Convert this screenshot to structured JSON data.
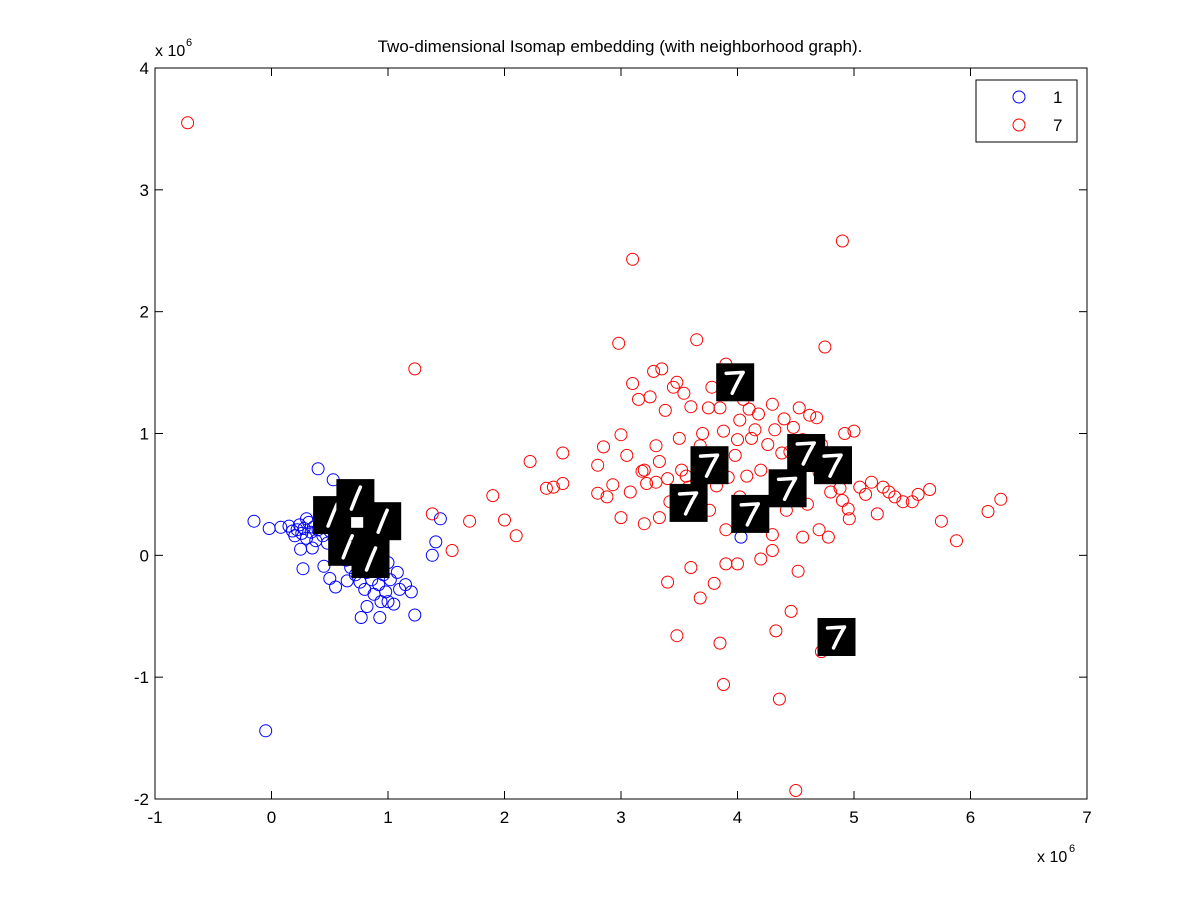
{
  "chart_data": {
    "type": "scatter",
    "title": "Two-dimensional Isomap embedding (with neighborhood graph).",
    "xlabel": "",
    "ylabel": "",
    "x_exponent_label": "x 10",
    "x_exponent_power": "6",
    "y_exponent_label": "x 10",
    "y_exponent_power": "6",
    "xlim": [
      -1000000,
      7000000
    ],
    "ylim": [
      -2000000,
      4000000
    ],
    "x_ticks": [
      -1,
      0,
      1,
      2,
      3,
      4,
      5,
      6,
      7
    ],
    "y_ticks": [
      -2,
      -1,
      0,
      1,
      2,
      3,
      4
    ],
    "tick_scale": 1000000,
    "grid": false,
    "legend_position": "top-right",
    "series": [
      {
        "name": "1",
        "color": "#0000ff",
        "marker": "open-circle",
        "points": [
          [
            -150000,
            280000
          ],
          [
            -20000,
            220000
          ],
          [
            80000,
            230000
          ],
          [
            150000,
            240000
          ],
          [
            180000,
            200000
          ],
          [
            200000,
            160000
          ],
          [
            220000,
            210000
          ],
          [
            240000,
            250000
          ],
          [
            260000,
            180000
          ],
          [
            280000,
            220000
          ],
          [
            300000,
            140000
          ],
          [
            320000,
            270000
          ],
          [
            340000,
            190000
          ],
          [
            360000,
            230000
          ],
          [
            380000,
            120000
          ],
          [
            400000,
            210000
          ],
          [
            420000,
            300000
          ],
          [
            440000,
            160000
          ],
          [
            460000,
            240000
          ],
          [
            480000,
            100000
          ],
          [
            500000,
            200000
          ],
          [
            520000,
            280000
          ],
          [
            540000,
            140000
          ],
          [
            560000,
            60000
          ],
          [
            580000,
            220000
          ],
          [
            600000,
            20000
          ],
          [
            620000,
            180000
          ],
          [
            640000,
            -40000
          ],
          [
            660000,
            120000
          ],
          [
            680000,
            -100000
          ],
          [
            700000,
            60000
          ],
          [
            720000,
            -160000
          ],
          [
            740000,
            0
          ],
          [
            760000,
            -220000
          ],
          [
            780000,
            -60000
          ],
          [
            800000,
            -280000
          ],
          [
            820000,
            -140000
          ],
          [
            840000,
            -20000
          ],
          [
            860000,
            -200000
          ],
          [
            880000,
            -320000
          ],
          [
            900000,
            -100000
          ],
          [
            920000,
            -240000
          ],
          [
            940000,
            -380000
          ],
          [
            960000,
            -160000
          ],
          [
            980000,
            -300000
          ],
          [
            1000000,
            -60000
          ],
          [
            1020000,
            -200000
          ],
          [
            1050000,
            -400000
          ],
          [
            1080000,
            -140000
          ],
          [
            1100000,
            -280000
          ],
          [
            1150000,
            -240000
          ],
          [
            1200000,
            -300000
          ],
          [
            1230000,
            -490000
          ],
          [
            1380000,
            0
          ],
          [
            1410000,
            110000
          ],
          [
            1450000,
            300000
          ],
          [
            400000,
            710000
          ],
          [
            530000,
            620000
          ],
          [
            700000,
            500000
          ],
          [
            300000,
            300000
          ],
          [
            250000,
            50000
          ],
          [
            270000,
            -110000
          ],
          [
            350000,
            60000
          ],
          [
            450000,
            -90000
          ],
          [
            500000,
            -190000
          ],
          [
            550000,
            -260000
          ],
          [
            650000,
            -210000
          ],
          [
            770000,
            -510000
          ],
          [
            930000,
            -510000
          ],
          [
            820000,
            -420000
          ],
          [
            1000000,
            -380000
          ],
          [
            -50000,
            -1440000
          ],
          [
            4030000,
            150000
          ]
        ]
      },
      {
        "name": "7",
        "color": "#ff0000",
        "marker": "open-circle",
        "points": [
          [
            -720000,
            3550000
          ],
          [
            1230000,
            1530000
          ],
          [
            1380000,
            340000
          ],
          [
            1550000,
            40000
          ],
          [
            1700000,
            280000
          ],
          [
            1900000,
            490000
          ],
          [
            2000000,
            290000
          ],
          [
            2100000,
            160000
          ],
          [
            2220000,
            770000
          ],
          [
            2360000,
            550000
          ],
          [
            2420000,
            560000
          ],
          [
            2500000,
            840000
          ],
          [
            2500000,
            590000
          ],
          [
            2800000,
            740000
          ],
          [
            2800000,
            510000
          ],
          [
            2850000,
            890000
          ],
          [
            2880000,
            480000
          ],
          [
            2930000,
            580000
          ],
          [
            2980000,
            1740000
          ],
          [
            3000000,
            990000
          ],
          [
            3000000,
            310000
          ],
          [
            3050000,
            820000
          ],
          [
            3080000,
            520000
          ],
          [
            3100000,
            1410000
          ],
          [
            3100000,
            2430000
          ],
          [
            3150000,
            1280000
          ],
          [
            3200000,
            700000
          ],
          [
            3220000,
            590000
          ],
          [
            3250000,
            1300000
          ],
          [
            3280000,
            1510000
          ],
          [
            3300000,
            900000
          ],
          [
            3330000,
            770000
          ],
          [
            3350000,
            1530000
          ],
          [
            3380000,
            1190000
          ],
          [
            3400000,
            630000
          ],
          [
            3420000,
            440000
          ],
          [
            3450000,
            1380000
          ],
          [
            3480000,
            1420000
          ],
          [
            3500000,
            960000
          ],
          [
            3520000,
            700000
          ],
          [
            3540000,
            1330000
          ],
          [
            3560000,
            650000
          ],
          [
            3580000,
            560000
          ],
          [
            3600000,
            1220000
          ],
          [
            3620000,
            460000
          ],
          [
            3650000,
            1770000
          ],
          [
            3680000,
            900000
          ],
          [
            3700000,
            1000000
          ],
          [
            3720000,
            660000
          ],
          [
            3750000,
            1210000
          ],
          [
            3780000,
            1380000
          ],
          [
            3800000,
            830000
          ],
          [
            3820000,
            570000
          ],
          [
            3850000,
            1210000
          ],
          [
            3880000,
            1020000
          ],
          [
            3900000,
            1570000
          ],
          [
            3920000,
            640000
          ],
          [
            3950000,
            1450000
          ],
          [
            3980000,
            820000
          ],
          [
            4000000,
            950000
          ],
          [
            4020000,
            1110000
          ],
          [
            4050000,
            1280000
          ],
          [
            4080000,
            650000
          ],
          [
            4100000,
            1200000
          ],
          [
            4120000,
            960000
          ],
          [
            4150000,
            1030000
          ],
          [
            4180000,
            1160000
          ],
          [
            4200000,
            700000
          ],
          [
            4230000,
            440000
          ],
          [
            4260000,
            910000
          ],
          [
            4300000,
            1240000
          ],
          [
            4320000,
            1030000
          ],
          [
            4350000,
            640000
          ],
          [
            4380000,
            840000
          ],
          [
            4400000,
            1120000
          ],
          [
            4420000,
            370000
          ],
          [
            4450000,
            850000
          ],
          [
            4480000,
            1050000
          ],
          [
            4500000,
            680000
          ],
          [
            4530000,
            1210000
          ],
          [
            4560000,
            950000
          ],
          [
            4600000,
            760000
          ],
          [
            4620000,
            1150000
          ],
          [
            4650000,
            870000
          ],
          [
            4680000,
            1130000
          ],
          [
            4700000,
            680000
          ],
          [
            4720000,
            910000
          ],
          [
            4750000,
            1710000
          ],
          [
            4800000,
            520000
          ],
          [
            4850000,
            700000
          ],
          [
            4900000,
            450000
          ],
          [
            4920000,
            1000000
          ],
          [
            4950000,
            380000
          ],
          [
            5000000,
            1020000
          ],
          [
            5050000,
            560000
          ],
          [
            5100000,
            500000
          ],
          [
            5150000,
            600000
          ],
          [
            5200000,
            340000
          ],
          [
            5250000,
            560000
          ],
          [
            5300000,
            520000
          ],
          [
            5350000,
            480000
          ],
          [
            5420000,
            440000
          ],
          [
            5500000,
            440000
          ],
          [
            5550000,
            500000
          ],
          [
            5650000,
            540000
          ],
          [
            5750000,
            280000
          ],
          [
            5880000,
            120000
          ],
          [
            6150000,
            360000
          ],
          [
            6260000,
            460000
          ],
          [
            4900000,
            2580000
          ],
          [
            3200000,
            260000
          ],
          [
            3330000,
            310000
          ],
          [
            3400000,
            -220000
          ],
          [
            3480000,
            -660000
          ],
          [
            3600000,
            -100000
          ],
          [
            3680000,
            -350000
          ],
          [
            3800000,
            -230000
          ],
          [
            3850000,
            -720000
          ],
          [
            3880000,
            -1060000
          ],
          [
            3900000,
            -70000
          ],
          [
            4000000,
            -70000
          ],
          [
            4200000,
            -30000
          ],
          [
            4300000,
            40000
          ],
          [
            4330000,
            -620000
          ],
          [
            4360000,
            -1180000
          ],
          [
            4460000,
            -460000
          ],
          [
            4500000,
            -1930000
          ],
          [
            4520000,
            -130000
          ],
          [
            4560000,
            150000
          ],
          [
            4700000,
            210000
          ],
          [
            4720000,
            -790000
          ],
          [
            4300000,
            170000
          ],
          [
            4100000,
            340000
          ],
          [
            3900000,
            210000
          ],
          [
            3760000,
            370000
          ],
          [
            3640000,
            410000
          ],
          [
            3500000,
            350000
          ],
          [
            3300000,
            600000
          ],
          [
            3180000,
            690000
          ],
          [
            4880000,
            550000
          ],
          [
            4960000,
            300000
          ],
          [
            4600000,
            420000
          ],
          [
            4780000,
            150000
          ],
          [
            4020000,
            480000
          ]
        ]
      }
    ],
    "digit_thumbnails": [
      {
        "digit": "1",
        "x": 520000,
        "y": 330000
      },
      {
        "digit": "1",
        "x": 720000,
        "y": 470000
      },
      {
        "digit": "1",
        "x": 950000,
        "y": 280000
      },
      {
        "digit": "1",
        "x": 650000,
        "y": 70000
      },
      {
        "digit": "1",
        "x": 850000,
        "y": -30000
      },
      {
        "digit": "7",
        "x": 3980000,
        "y": 1420000
      },
      {
        "digit": "7",
        "x": 3760000,
        "y": 740000
      },
      {
        "digit": "7",
        "x": 4590000,
        "y": 840000
      },
      {
        "digit": "7",
        "x": 4820000,
        "y": 740000
      },
      {
        "digit": "7",
        "x": 4430000,
        "y": 550000
      },
      {
        "digit": "7",
        "x": 3580000,
        "y": 430000
      },
      {
        "digit": "7",
        "x": 4110000,
        "y": 340000
      },
      {
        "digit": "7",
        "x": 4850000,
        "y": -670000
      }
    ]
  }
}
